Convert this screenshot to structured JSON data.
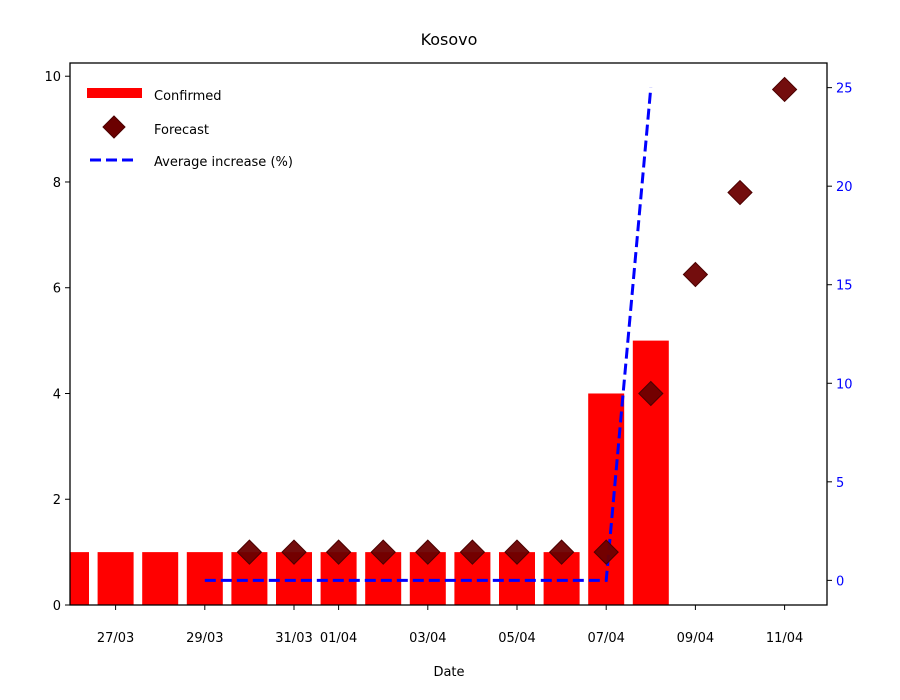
{
  "chart_data": {
    "type": "bar",
    "title": "Kosovo",
    "xlabel": "Date",
    "ylabel": "",
    "ylim": [
      0,
      10.25
    ],
    "y2lim": [
      -1.25,
      26.25
    ],
    "yticks": [
      0,
      2,
      4,
      6,
      8,
      10
    ],
    "y2ticks": [
      0,
      5,
      10,
      15,
      20,
      25
    ],
    "x_tick_labels": [
      {
        "day": 1,
        "label": "27/03"
      },
      {
        "day": 3,
        "label": "29/03"
      },
      {
        "day": 5,
        "label": "31/03"
      },
      {
        "day": 6,
        "label": "01/04"
      },
      {
        "day": 8,
        "label": "03/04"
      },
      {
        "day": 10,
        "label": "05/04"
      },
      {
        "day": 12,
        "label": "07/04"
      },
      {
        "day": 14,
        "label": "09/04"
      },
      {
        "day": 16,
        "label": "11/04"
      }
    ],
    "legend": {
      "position": "top-left",
      "entries": [
        "Confirmed",
        "Forecast",
        "Average increase (%)"
      ]
    },
    "series": [
      {
        "name": "Confirmed",
        "type": "bar",
        "color": "#ff0000",
        "days": [
          0,
          1,
          2,
          3,
          4,
          5,
          6,
          7,
          8,
          9,
          10,
          11,
          12,
          13
        ],
        "values": [
          1,
          1,
          1,
          1,
          1,
          1,
          1,
          1,
          1,
          1,
          1,
          1,
          4,
          5
        ]
      },
      {
        "name": "Forecast",
        "type": "scatter",
        "marker": "diamond",
        "color": "#6b0000",
        "days": [
          4,
          5,
          6,
          7,
          8,
          9,
          10,
          11,
          12,
          13,
          14,
          15,
          16
        ],
        "values": [
          1,
          1,
          1,
          1,
          1,
          1,
          1,
          1,
          1,
          4,
          6.25,
          7.8,
          9.75
        ]
      },
      {
        "name": "Average increase (%)",
        "type": "line",
        "axis": "right",
        "style": "dashed",
        "color": "#0000ff",
        "days": [
          3,
          4,
          5,
          6,
          7,
          8,
          9,
          10,
          11,
          12,
          13
        ],
        "values": [
          0,
          0,
          0,
          0,
          0,
          0,
          0,
          0,
          0,
          0,
          25
        ]
      }
    ]
  }
}
